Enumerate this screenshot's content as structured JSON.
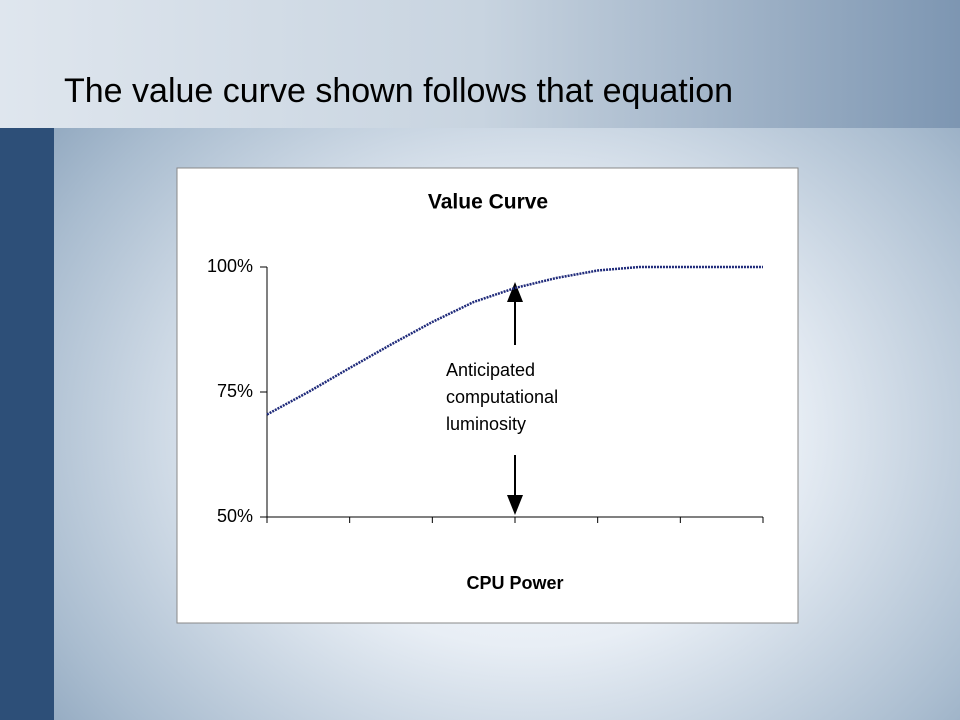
{
  "slide_title": "The value curve shown follows that equation",
  "chart_data": {
    "type": "line",
    "title": "Value Curve",
    "x_label": "CPU Power",
    "x": [
      0,
      0.5,
      1,
      1.5,
      2,
      2.5,
      3,
      3.5,
      4,
      4.5,
      5,
      5.5,
      6
    ],
    "series": [
      {
        "name": "Value",
        "color": "#1f2a7a",
        "values": [
          70.5,
          75,
          79.8,
          84.5,
          89,
          93,
          95.8,
          97.8,
          99.3,
          100,
          100,
          100,
          100
        ]
      }
    ],
    "xlim": [
      0,
      6
    ],
    "xticks": [
      0,
      1,
      2,
      3,
      4,
      5,
      6
    ],
    "ylim": [
      50,
      100
    ],
    "yticks": [
      {
        "value": 50,
        "label": "50%"
      },
      {
        "value": 75,
        "label": "75%"
      },
      {
        "value": 100,
        "label": "100%"
      }
    ],
    "annotation": [
      "Anticipated",
      "computational",
      "luminosity"
    ]
  }
}
